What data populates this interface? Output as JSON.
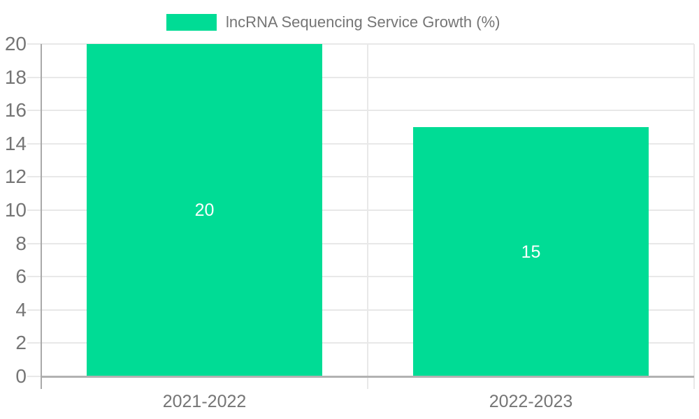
{
  "chart_data": {
    "type": "bar",
    "title": "",
    "xlabel": "",
    "ylabel": "",
    "categories": [
      "2021-2022",
      "2022-2023"
    ],
    "series": [
      {
        "name": "lncRNA Sequencing Service Growth (%)",
        "values": [
          20,
          15
        ]
      }
    ],
    "data_labels": [
      "20",
      "15"
    ],
    "ylim": [
      0,
      20
    ],
    "ytick_step": 2,
    "ytick_labels": [
      "0",
      "2",
      "4",
      "6",
      "8",
      "10",
      "12",
      "14",
      "16",
      "18",
      "20"
    ],
    "grid": true,
    "legend_position": "top-center",
    "colors": {
      "bar": "#00DC95",
      "data_label_text": "#ffffff",
      "axis_text": "#757575",
      "gridline": "#e8e8e8",
      "axis_line": "#a9a9a9",
      "baseline": "#b2b2b2",
      "background": "#ffffff"
    }
  }
}
